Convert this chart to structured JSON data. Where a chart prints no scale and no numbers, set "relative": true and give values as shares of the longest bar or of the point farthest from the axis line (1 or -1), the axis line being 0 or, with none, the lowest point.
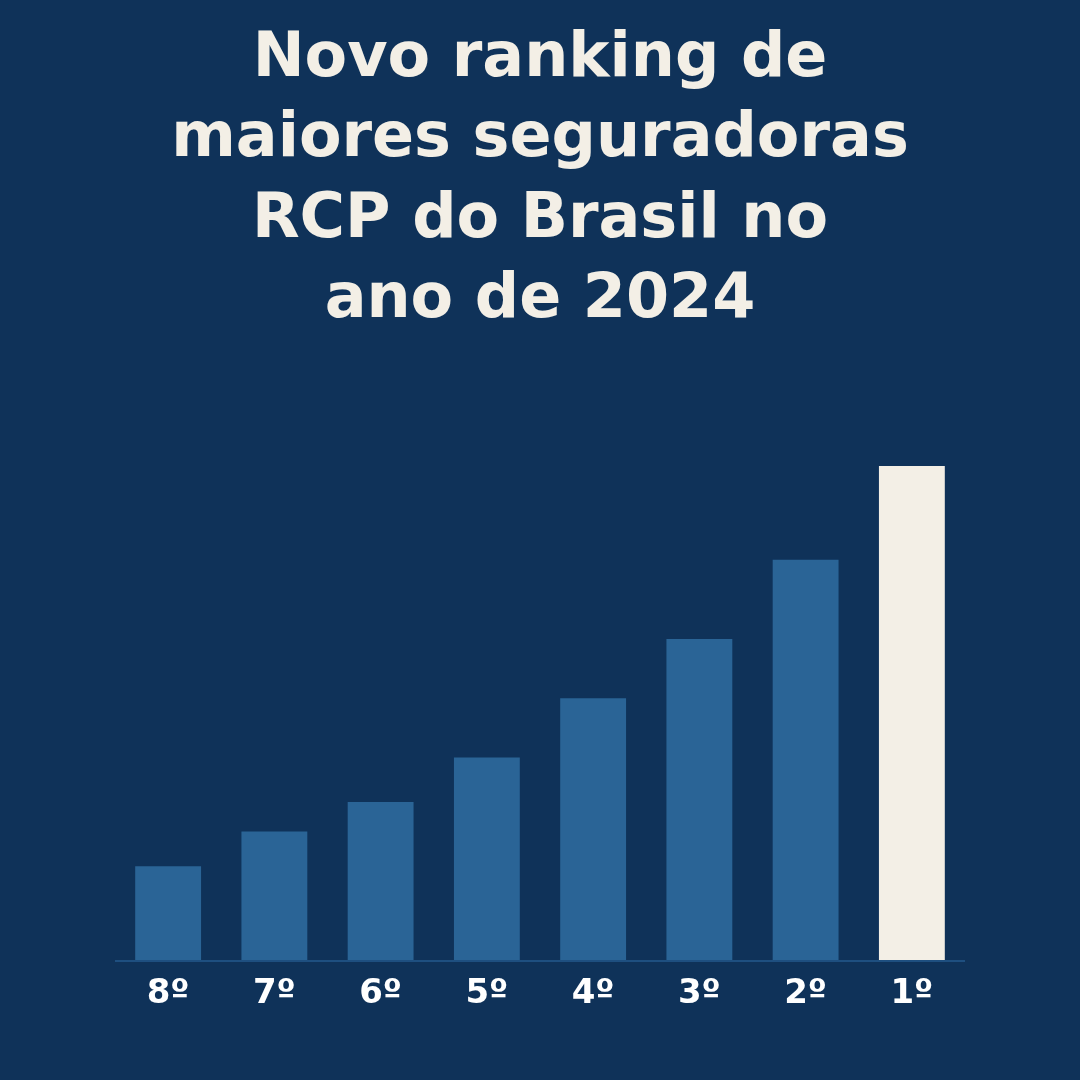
{
  "chart_data": {
    "type": "bar",
    "title": "Novo ranking de\nmaiores seguradoras\nRCP do Brasil no\nano de 2024",
    "relative": true,
    "categories": [
      "8º",
      "7º",
      "6º",
      "5º",
      "4º",
      "3º",
      "2º",
      "1º"
    ],
    "values": [
      0.19,
      0.26,
      0.32,
      0.41,
      0.53,
      0.65,
      0.81,
      1
    ],
    "colors": [
      "#2a6496",
      "#2a6496",
      "#2a6496",
      "#2a6496",
      "#2a6496",
      "#2a6496",
      "#2a6496",
      "#f3efe6"
    ]
  }
}
